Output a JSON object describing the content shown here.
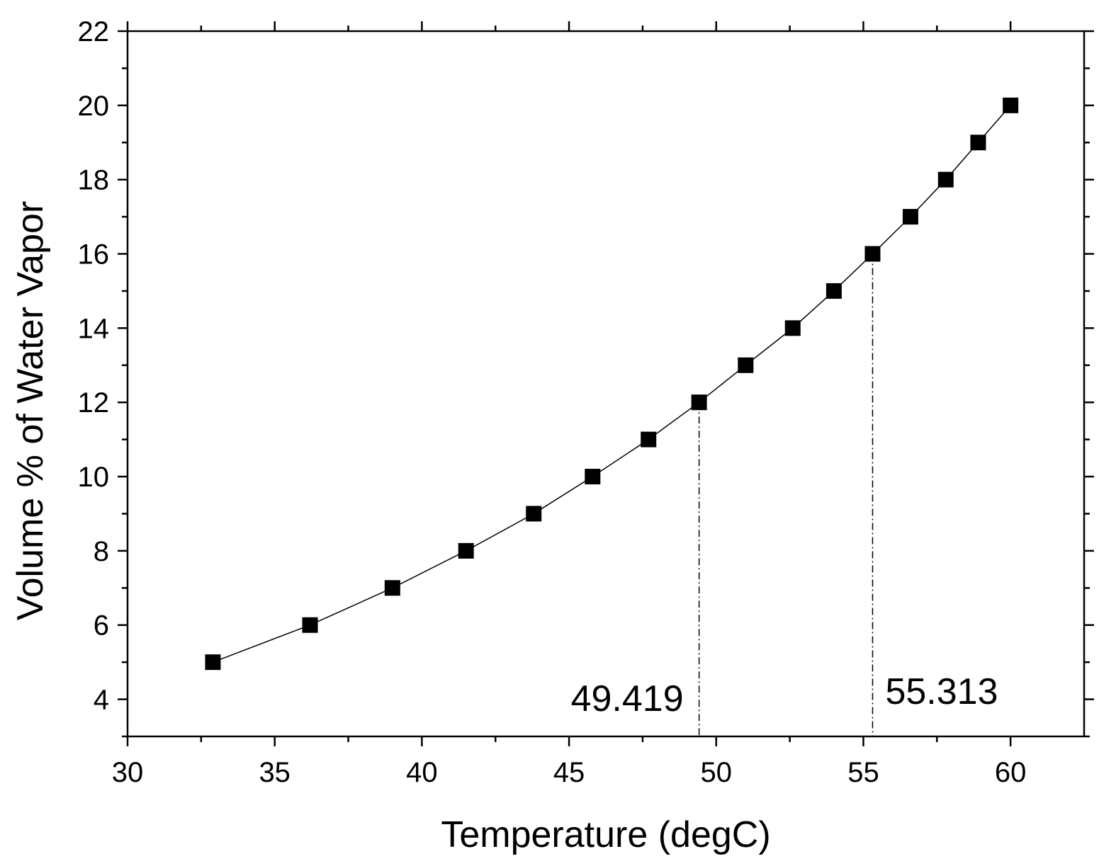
{
  "chart_data": {
    "type": "line",
    "xlabel": "Temperature (degC)",
    "ylabel": "Volume % of Water Vapor",
    "xlim": [
      30,
      62.5
    ],
    "ylim": [
      3,
      22
    ],
    "x_ticks": [
      30,
      35,
      40,
      45,
      50,
      55,
      60
    ],
    "y_ticks": [
      4,
      6,
      8,
      10,
      12,
      14,
      16,
      18,
      20,
      22
    ],
    "x_tick_labels": [
      "30",
      "35",
      "40",
      "45",
      "50",
      "55",
      "60"
    ],
    "y_tick_labels": [
      "4",
      "6",
      "8",
      "10",
      "12",
      "14",
      "16",
      "18",
      "20",
      "22"
    ],
    "grid": false,
    "marker": "square",
    "colors": {
      "series": "#000000",
      "axes": "#000000"
    },
    "series": [
      {
        "x": [
          32.9,
          36.2,
          39.0,
          41.5,
          43.8,
          45.8,
          47.7,
          49.419,
          51.0,
          52.6,
          54.0,
          55.313,
          56.6,
          57.8,
          58.9,
          60.0
        ],
        "y": [
          5,
          6,
          7,
          8,
          9,
          10,
          11,
          12,
          13,
          14,
          15,
          16,
          17,
          18,
          19,
          20
        ]
      }
    ],
    "annotations": [
      {
        "text": "49.419",
        "x": 49.419,
        "y": 12
      },
      {
        "text": "55.313",
        "x": 55.313,
        "y": 16
      }
    ]
  }
}
